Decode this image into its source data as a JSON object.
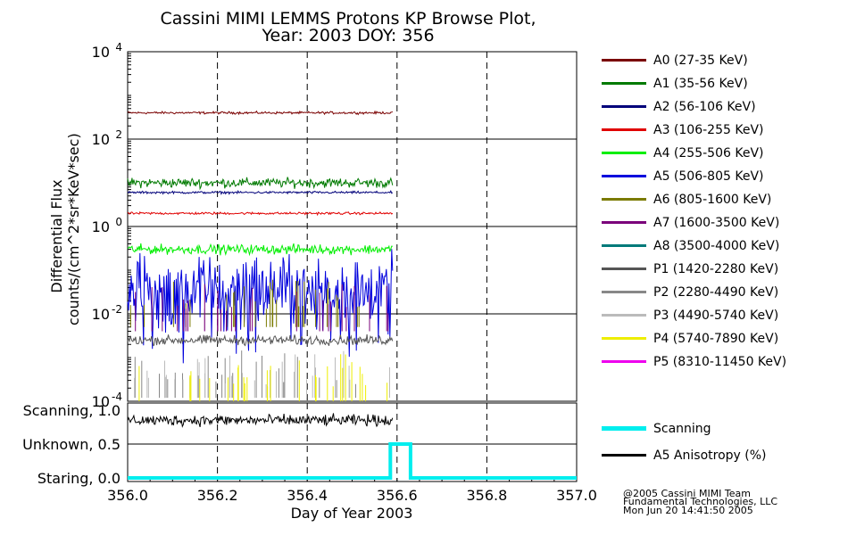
{
  "title_line1": "Cassini MIMI LEMMS Protons KP Browse Plot,",
  "title_line2": "Year: 2003 DOY: 356",
  "credits": [
    "@2005 Cassini MIMI Team",
    "Fundamental Technologies, LLC",
    "Mon Jun 20 14:41:50 2005"
  ],
  "chart_data": [
    {
      "type": "line",
      "title": "Cassini MIMI LEMMS Protons KP Browse Plot, Year: 2003 DOY: 356",
      "xlabel": "Day of Year 2003",
      "ylabel_line1": "Differential Flux",
      "ylabel_line2": "counts/(cm^2*sr*KeV*sec)",
      "yscale": "log",
      "xlim": [
        356.0,
        357.0
      ],
      "ylim": [
        0.0001,
        10000
      ],
      "y_ticks": [
        {
          "value": 0.0001,
          "base": "10",
          "exp": "-4"
        },
        {
          "value": 0.01,
          "base": "10",
          "exp": "-2"
        },
        {
          "value": 1,
          "base": "10",
          "exp": "0"
        },
        {
          "value": 100,
          "base": "10",
          "exp": "2"
        },
        {
          "value": 10000,
          "base": "10",
          "exp": "4"
        }
      ],
      "data_end_x": 356.59,
      "grid": true,
      "legend_position": "right",
      "series": [
        {
          "name": "A0 (27-35 KeV)",
          "color": "#7a0000",
          "level": 400,
          "variability": "low",
          "present": true
        },
        {
          "name": "A1 (35-56 KeV)",
          "color": "#007a00",
          "level": 10,
          "variability": "medium",
          "present": true
        },
        {
          "name": "A2 (56-106 KeV)",
          "color": "#00007a",
          "level": 6,
          "variability": "low",
          "present": true
        },
        {
          "name": "A3 (106-255 KeV)",
          "color": "#e00000",
          "level": 2,
          "variability": "low",
          "present": true
        },
        {
          "name": "A4 (255-506 KeV)",
          "color": "#00ee00",
          "level": 0.3,
          "variability": "medium",
          "present": true
        },
        {
          "name": "A5 (506-805 KeV)",
          "color": "#0000dd",
          "level": 0.04,
          "variability": "high",
          "present": true
        },
        {
          "name": "A6 (805-1600 KeV)",
          "color": "#7a7a00",
          "level": 0.005,
          "variability": "spiky",
          "present": true
        },
        {
          "name": "A7 (1600-3500 KeV)",
          "color": "#7a007a",
          "level": 0.004,
          "variability": "spiky",
          "present": true
        },
        {
          "name": "A8 (3500-4000 KeV)",
          "color": "#007a7a",
          "level": null,
          "variability": "none",
          "present": false
        },
        {
          "name": "P1 (1420-2280 KeV)",
          "color": "#555555",
          "level": 0.0025,
          "variability": "medium",
          "present": true
        },
        {
          "name": "P2 (2280-4490 KeV)",
          "color": "#888888",
          "level": 0.00012,
          "variability": "spiky",
          "present": true
        },
        {
          "name": "P3 (4490-5740 KeV)",
          "color": "#bbbbbb",
          "level": 0.00012,
          "variability": "spiky",
          "present": true
        },
        {
          "name": "P4 (5740-7890 KeV)",
          "color": "#eeee00",
          "level": 0.0001,
          "variability": "spiky",
          "present": true
        },
        {
          "name": "P5 (8310-11450 KeV)",
          "color": "#ee00ee",
          "level": null,
          "variability": "none",
          "present": false
        }
      ]
    },
    {
      "type": "line",
      "xlabel": "Day of Year 2003",
      "xlim": [
        356.0,
        357.0
      ],
      "x_ticks": [
        "356.0",
        "356.2",
        "356.4",
        "356.6",
        "356.8",
        "357.0"
      ],
      "ylim": [
        0.0,
        1.0
      ],
      "y_ticks": [
        "Scanning, 1.0",
        "Unknown, 0.5",
        "Staring, 0.0"
      ],
      "grid": true,
      "legend_position": "right",
      "series": [
        {
          "name": "Scanning",
          "color": "#00eeee",
          "x": [
            356.0,
            356.585,
            356.585,
            356.63,
            356.63,
            357.0
          ],
          "y": [
            0.0,
            0.0,
            0.5,
            0.5,
            0.0,
            0.0
          ]
        },
        {
          "name": "A5 Anisotropy (%)",
          "color": "#000000",
          "x_range": [
            356.0,
            356.59
          ],
          "level": 0.85,
          "variability": "medium"
        }
      ]
    }
  ]
}
